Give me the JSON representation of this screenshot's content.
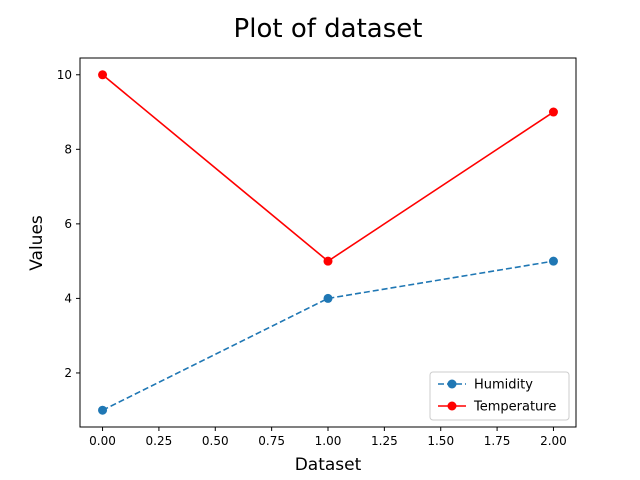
{
  "chart_data": {
    "type": "line",
    "title": "Plot of dataset",
    "xlabel": "Dataset",
    "ylabel": "Values",
    "xlim": [
      -0.1,
      2.1
    ],
    "ylim": [
      0.55,
      10.45
    ],
    "x_ticks": [
      0.0,
      0.25,
      0.5,
      0.75,
      1.0,
      1.25,
      1.5,
      1.75,
      2.0
    ],
    "x_tick_labels": [
      "0.00",
      "0.25",
      "0.50",
      "0.75",
      "1.00",
      "1.25",
      "1.50",
      "1.75",
      "2.00"
    ],
    "y_ticks": [
      2,
      4,
      6,
      8,
      10
    ],
    "y_tick_labels": [
      "2",
      "4",
      "6",
      "8",
      "10"
    ],
    "grid": false,
    "legend_position": "lower-right",
    "x": [
      0,
      1,
      2
    ],
    "series": [
      {
        "name": "Humidity",
        "values": [
          1,
          4,
          5
        ],
        "color": "#1f77b4",
        "linestyle": "dashed",
        "marker": "circle"
      },
      {
        "name": "Temperature",
        "values": [
          10,
          5,
          9
        ],
        "color": "#ff0000",
        "linestyle": "solid",
        "marker": "circle"
      }
    ]
  }
}
